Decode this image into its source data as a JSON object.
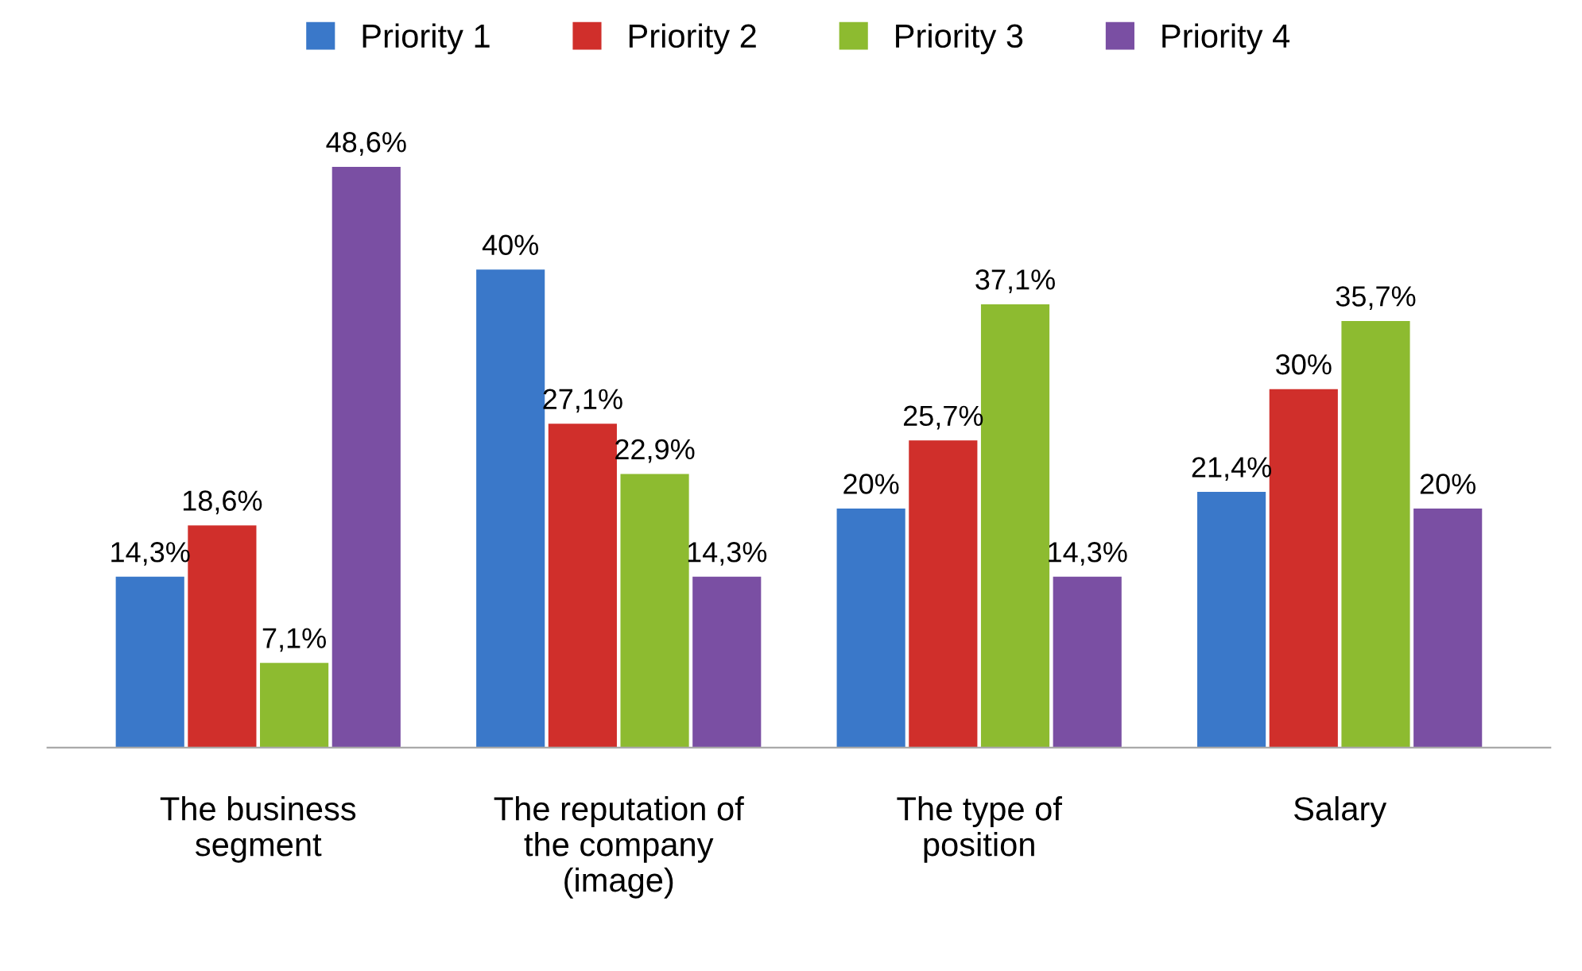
{
  "chart_data": {
    "type": "bar",
    "categories": [
      "The business\nsegment",
      "The reputation of\nthe company\n(image)",
      "The type of\nposition",
      "Salary"
    ],
    "series": [
      {
        "name": "Priority 1",
        "color": "#3a78c9",
        "values": [
          14.3,
          40,
          20,
          21.4
        ],
        "value_labels": [
          "14,3%",
          "40%",
          "20%",
          "21,4%"
        ]
      },
      {
        "name": "Priority 2",
        "color": "#d02f2b",
        "values": [
          18.6,
          27.1,
          25.7,
          30
        ],
        "value_labels": [
          "18,6%",
          "27,1%",
          "25,7%",
          "30%"
        ]
      },
      {
        "name": "Priority 3",
        "color": "#8dbb30",
        "values": [
          7.1,
          22.9,
          37.1,
          35.7
        ],
        "value_labels": [
          "7,1%",
          "22,9%",
          "37,1%",
          "35,7%"
        ]
      },
      {
        "name": "Priority 4",
        "color": "#7a4fa3",
        "values": [
          48.6,
          14.3,
          14.3,
          20
        ],
        "value_labels": [
          "48,6%",
          "14,3%",
          "14,3%",
          "20%"
        ]
      }
    ],
    "legend": "top",
    "grid": false
  }
}
